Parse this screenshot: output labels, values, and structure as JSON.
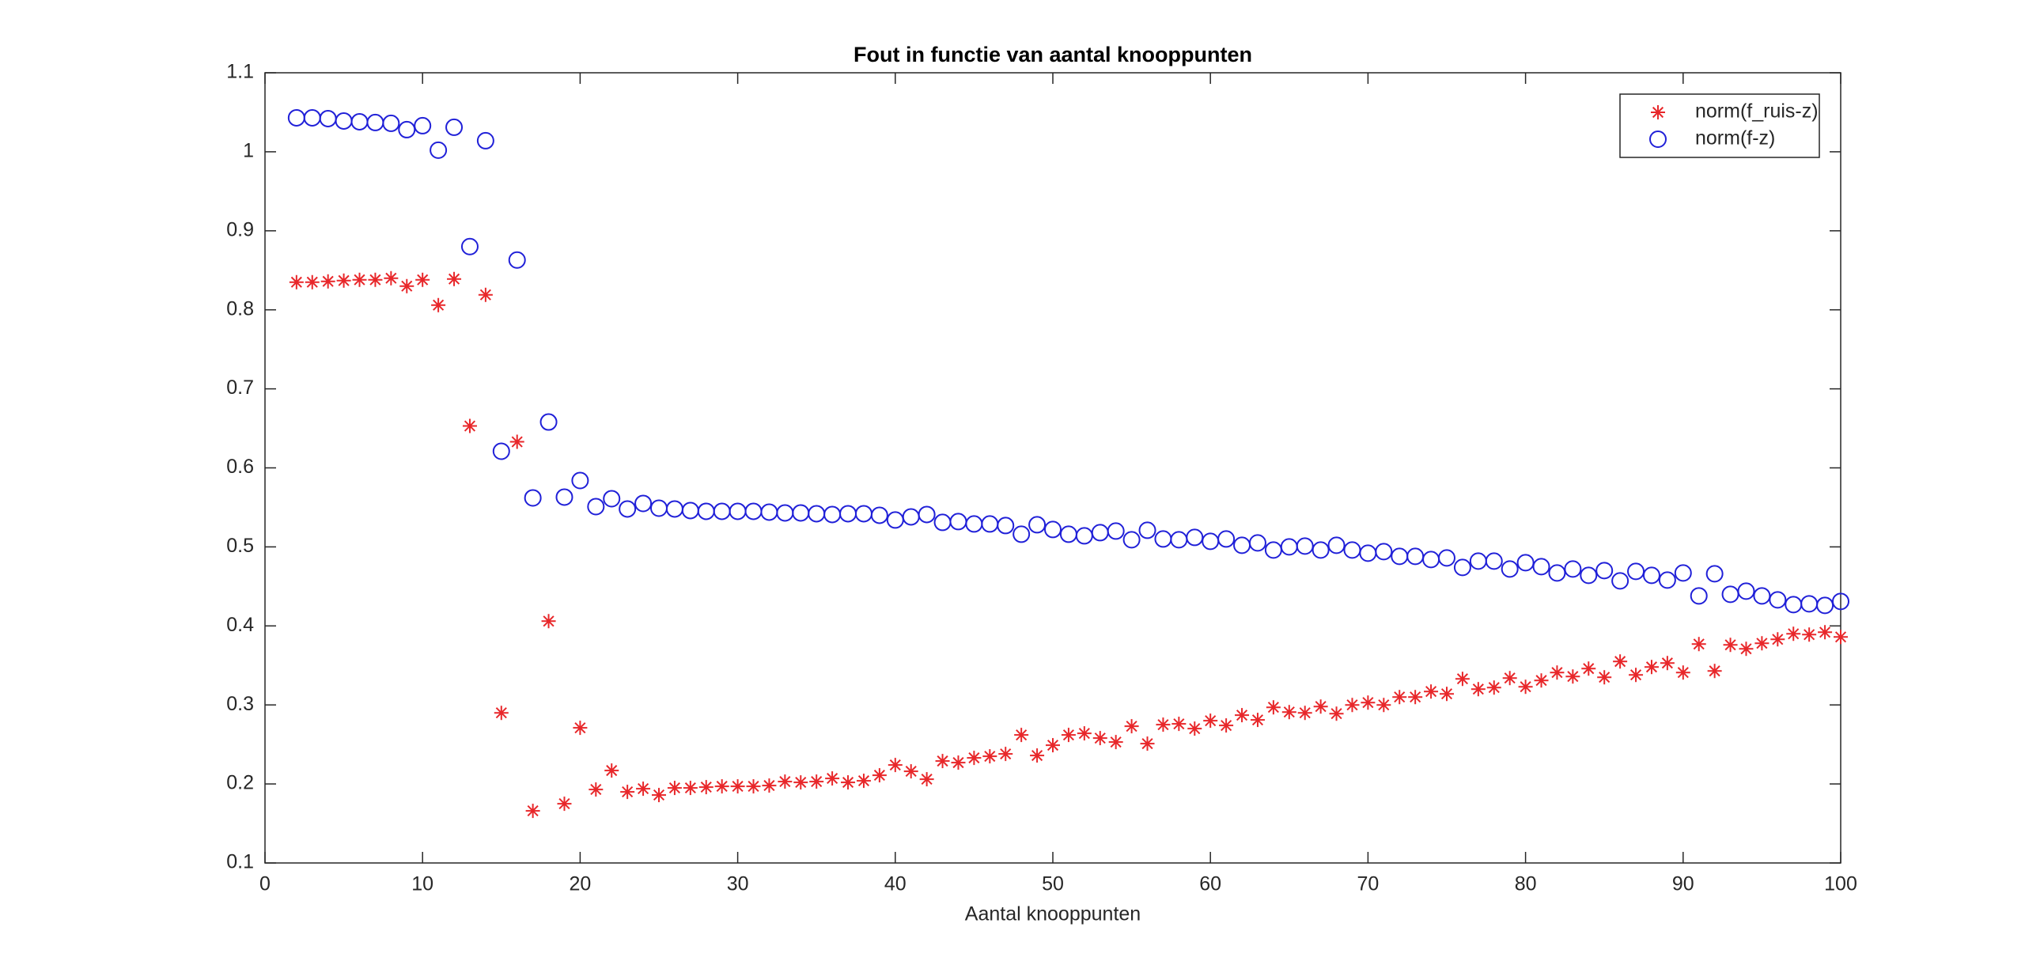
{
  "chart_data": {
    "type": "scatter",
    "title": "Fout in functie van aantal knooppunten",
    "x_label": "Aantal knooppunten",
    "x": [
      2,
      3,
      4,
      5,
      6,
      7,
      8,
      9,
      10,
      11,
      12,
      13,
      14,
      15,
      16,
      17,
      18,
      19,
      20,
      21,
      22,
      23,
      24,
      25,
      26,
      27,
      28,
      29,
      30,
      31,
      32,
      33,
      34,
      35,
      36,
      37,
      38,
      39,
      40,
      41,
      42,
      43,
      44,
      45,
      46,
      47,
      48,
      49,
      50,
      51,
      52,
      53,
      54,
      55,
      56,
      57,
      58,
      59,
      60,
      61,
      62,
      63,
      64,
      65,
      66,
      67,
      68,
      69,
      70,
      71,
      72,
      73,
      74,
      75,
      76,
      77,
      78,
      79,
      80,
      81,
      82,
      83,
      84,
      85,
      86,
      87,
      88,
      89,
      90,
      91,
      92,
      93,
      94,
      95,
      96,
      97,
      98,
      99,
      100
    ],
    "series": [
      {
        "name": "norm(f_ruis-z)",
        "color": "#e8272a",
        "marker": "star",
        "values": [
          0.835,
          0.835,
          0.836,
          0.837,
          0.838,
          0.838,
          0.84,
          0.83,
          0.838,
          0.806,
          0.839,
          0.653,
          0.819,
          0.29,
          0.633,
          0.166,
          0.406,
          0.175,
          0.271,
          0.193,
          0.217,
          0.19,
          0.194,
          0.186,
          0.195,
          0.195,
          0.196,
          0.197,
          0.197,
          0.197,
          0.198,
          0.203,
          0.202,
          0.203,
          0.207,
          0.202,
          0.204,
          0.211,
          0.224,
          0.216,
          0.206,
          0.229,
          0.227,
          0.233,
          0.235,
          0.238,
          0.262,
          0.236,
          0.249,
          0.262,
          0.264,
          0.258,
          0.253,
          0.273,
          0.251,
          0.275,
          0.276,
          0.27,
          0.28,
          0.274,
          0.287,
          0.281,
          0.297,
          0.291,
          0.29,
          0.298,
          0.289,
          0.3,
          0.303,
          0.3,
          0.31,
          0.31,
          0.317,
          0.314,
          0.333,
          0.32,
          0.322,
          0.334,
          0.323,
          0.331,
          0.341,
          0.336,
          0.346,
          0.335,
          0.355,
          0.338,
          0.348,
          0.353,
          0.341,
          0.377,
          0.343,
          0.376,
          0.371,
          0.378,
          0.383,
          0.39,
          0.389,
          0.392,
          0.386
        ]
      },
      {
        "name": "norm(f-z)",
        "color": "#2020d8",
        "marker": "circle",
        "values": [
          1.043,
          1.043,
          1.042,
          1.039,
          1.038,
          1.037,
          1.036,
          1.028,
          1.033,
          1.002,
          1.031,
          0.88,
          1.014,
          0.621,
          0.863,
          0.562,
          0.658,
          0.563,
          0.584,
          0.551,
          0.561,
          0.548,
          0.555,
          0.549,
          0.548,
          0.546,
          0.545,
          0.545,
          0.545,
          0.545,
          0.544,
          0.543,
          0.543,
          0.542,
          0.541,
          0.542,
          0.542,
          0.54,
          0.534,
          0.538,
          0.541,
          0.531,
          0.532,
          0.529,
          0.529,
          0.527,
          0.516,
          0.528,
          0.522,
          0.516,
          0.514,
          0.518,
          0.52,
          0.509,
          0.521,
          0.51,
          0.509,
          0.512,
          0.507,
          0.51,
          0.502,
          0.505,
          0.496,
          0.5,
          0.501,
          0.496,
          0.502,
          0.496,
          0.492,
          0.494,
          0.488,
          0.488,
          0.484,
          0.486,
          0.474,
          0.482,
          0.482,
          0.472,
          0.48,
          0.475,
          0.467,
          0.472,
          0.464,
          0.47,
          0.457,
          0.469,
          0.464,
          0.458,
          0.467,
          0.438,
          0.466,
          0.44,
          0.444,
          0.438,
          0.433,
          0.427,
          0.428,
          0.426,
          0.431
        ]
      }
    ],
    "xlim": [
      0,
      100
    ],
    "xticks": [
      0,
      10,
      20,
      30,
      40,
      50,
      60,
      70,
      80,
      90,
      100
    ],
    "ylim": [
      0.1,
      1.1
    ],
    "yticks": [
      0.1,
      0.2,
      0.3,
      0.4,
      0.5,
      0.6,
      0.7,
      0.8,
      0.9,
      1,
      1.1
    ],
    "grid": false,
    "legend": "upper right"
  }
}
